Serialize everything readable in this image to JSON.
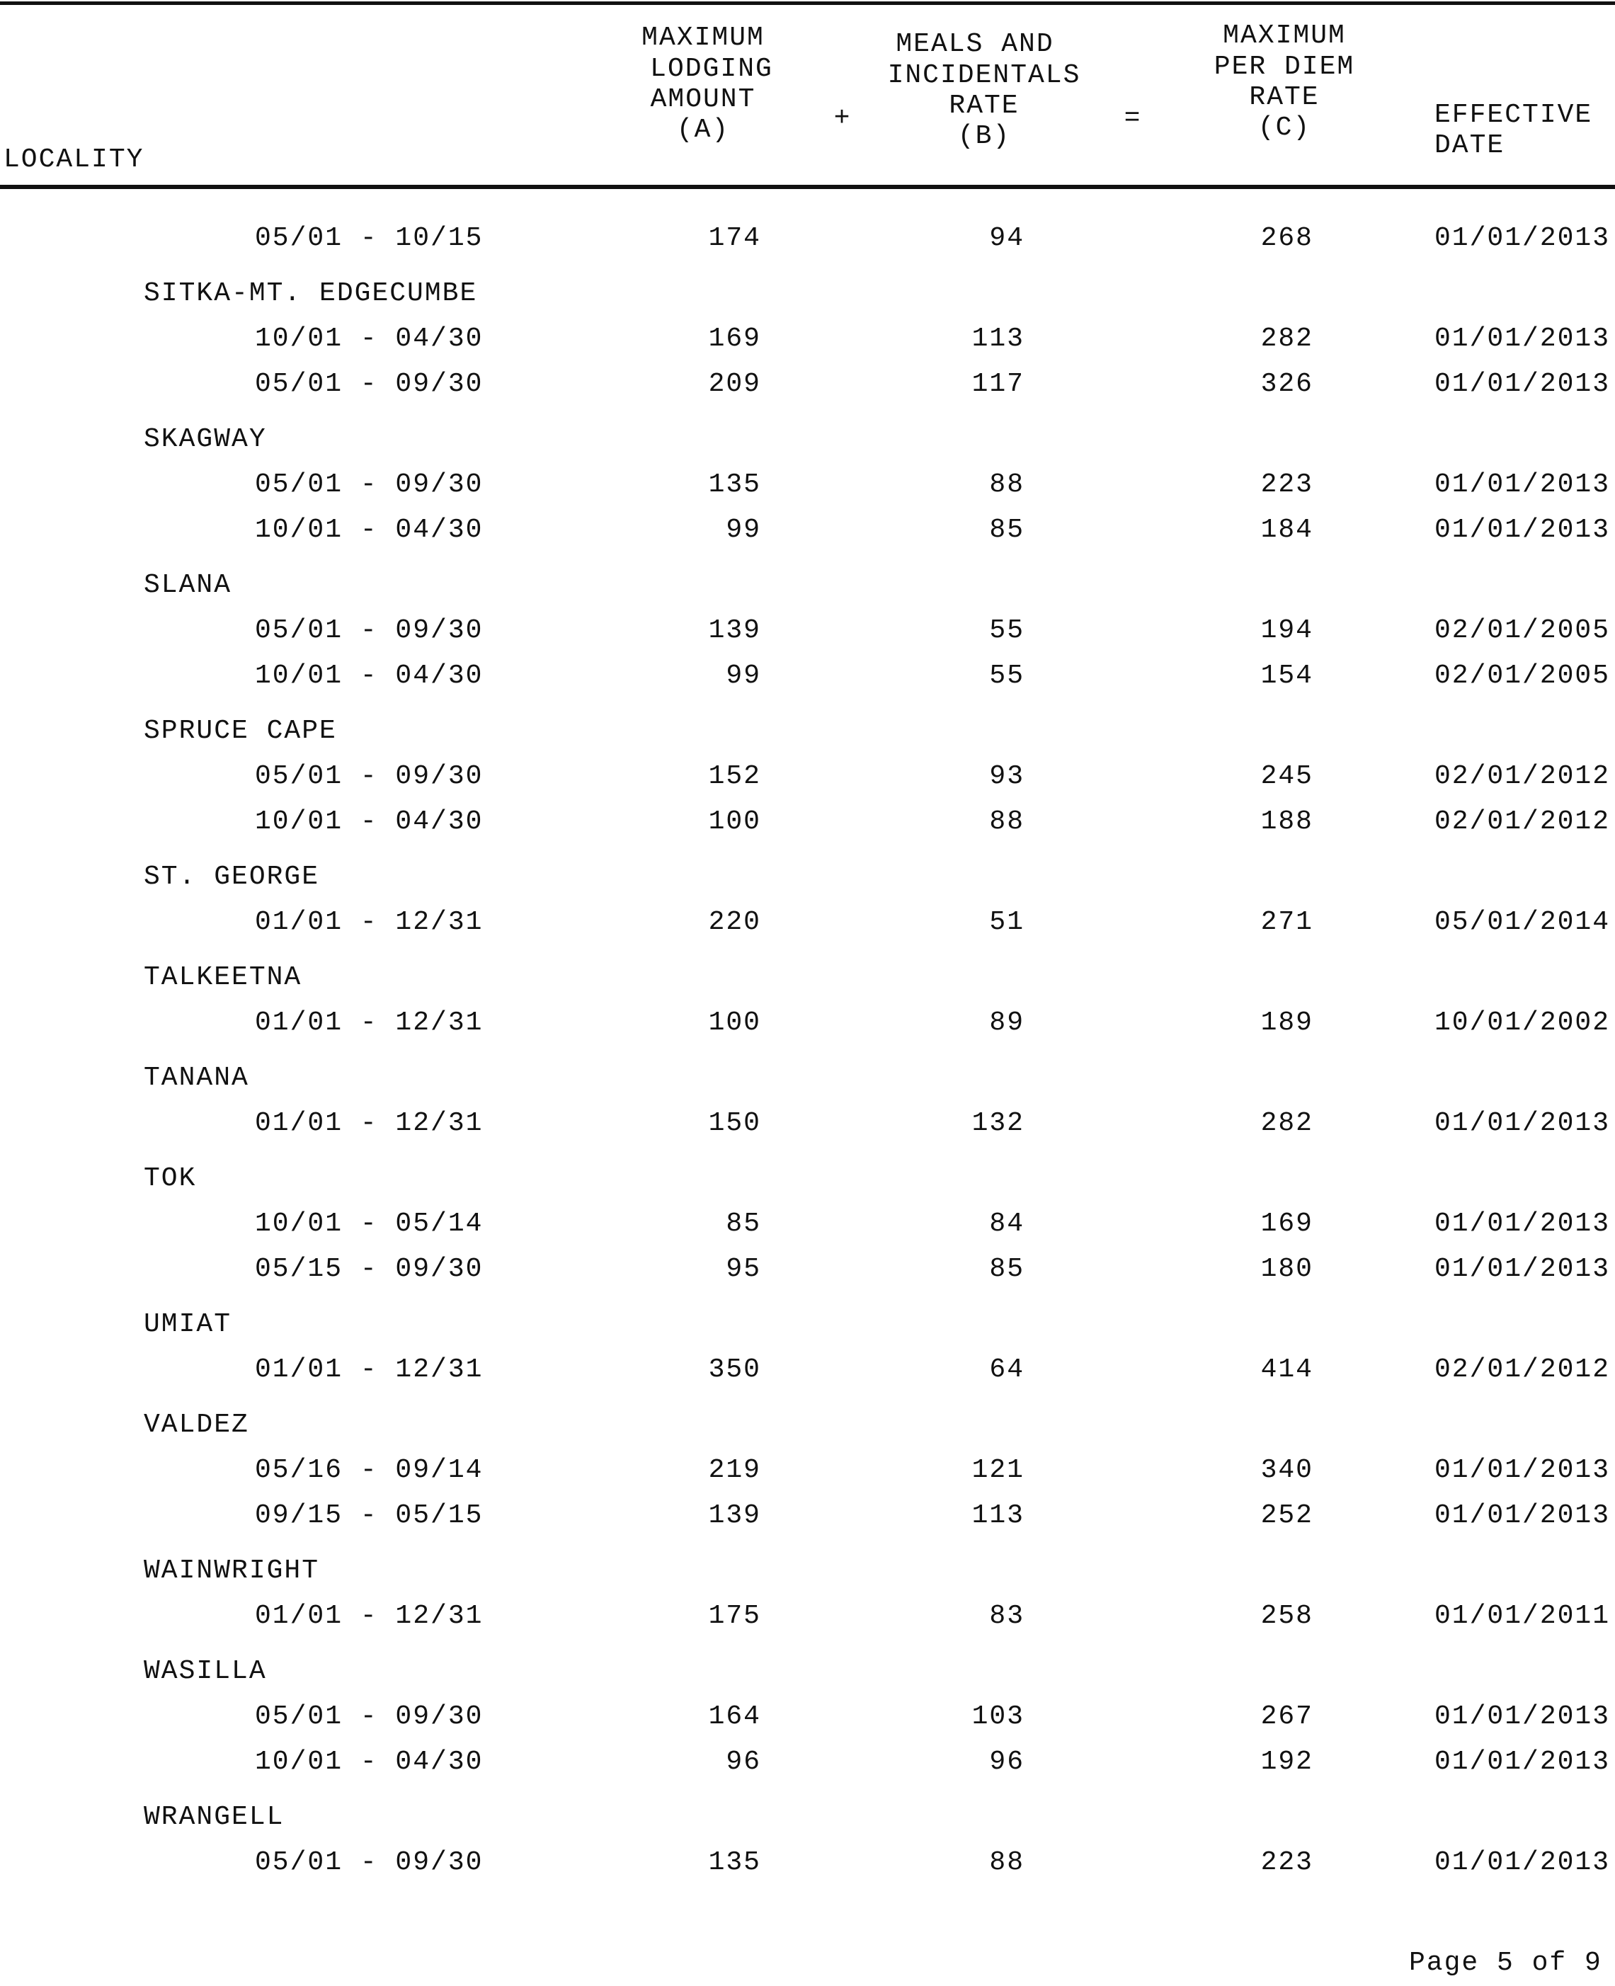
{
  "header": {
    "locality": "LOCALITY",
    "lodging": [
      "MAXIMUM",
      "LODGING",
      "AMOUNT",
      "(A)"
    ],
    "plus": "+",
    "mie": [
      "MEALS AND",
      "INCIDENTALS",
      "RATE",
      "(B)"
    ],
    "equals": "=",
    "per_diem": [
      "MAXIMUM",
      "PER DIEM",
      "RATE",
      "(C)"
    ],
    "effective": [
      "EFFECTIVE",
      "DATE"
    ]
  },
  "rows": [
    {
      "season": "05/01 - 10/15",
      "lodging": "174",
      "mie": "94",
      "per_diem": "268",
      "effective": "01/01/2013"
    },
    {
      "locality": "SITKA-MT. EDGECUMBE"
    },
    {
      "season": "10/01 - 04/30",
      "lodging": "169",
      "mie": "113",
      "per_diem": "282",
      "effective": "01/01/2013"
    },
    {
      "season": "05/01 - 09/30",
      "lodging": "209",
      "mie": "117",
      "per_diem": "326",
      "effective": "01/01/2013"
    },
    {
      "locality": "SKAGWAY"
    },
    {
      "season": "05/01 - 09/30",
      "lodging": "135",
      "mie": "88",
      "per_diem": "223",
      "effective": "01/01/2013"
    },
    {
      "season": "10/01 - 04/30",
      "lodging": "99",
      "mie": "85",
      "per_diem": "184",
      "effective": "01/01/2013"
    },
    {
      "locality": "SLANA"
    },
    {
      "season": "05/01 - 09/30",
      "lodging": "139",
      "mie": "55",
      "per_diem": "194",
      "effective": "02/01/2005"
    },
    {
      "season": "10/01 - 04/30",
      "lodging": "99",
      "mie": "55",
      "per_diem": "154",
      "effective": "02/01/2005"
    },
    {
      "locality": "SPRUCE CAPE"
    },
    {
      "season": "05/01 - 09/30",
      "lodging": "152",
      "mie": "93",
      "per_diem": "245",
      "effective": "02/01/2012"
    },
    {
      "season": "10/01 - 04/30",
      "lodging": "100",
      "mie": "88",
      "per_diem": "188",
      "effective": "02/01/2012"
    },
    {
      "locality": "ST. GEORGE"
    },
    {
      "season": "01/01 - 12/31",
      "lodging": "220",
      "mie": "51",
      "per_diem": "271",
      "effective": "05/01/2014"
    },
    {
      "locality": "TALKEETNA"
    },
    {
      "season": "01/01 - 12/31",
      "lodging": "100",
      "mie": "89",
      "per_diem": "189",
      "effective": "10/01/2002"
    },
    {
      "locality": "TANANA"
    },
    {
      "season": "01/01 - 12/31",
      "lodging": "150",
      "mie": "132",
      "per_diem": "282",
      "effective": "01/01/2013"
    },
    {
      "locality": "TOK"
    },
    {
      "season": "10/01 - 05/14",
      "lodging": "85",
      "mie": "84",
      "per_diem": "169",
      "effective": "01/01/2013"
    },
    {
      "season": "05/15 - 09/30",
      "lodging": "95",
      "mie": "85",
      "per_diem": "180",
      "effective": "01/01/2013"
    },
    {
      "locality": "UMIAT"
    },
    {
      "season": "01/01 - 12/31",
      "lodging": "350",
      "mie": "64",
      "per_diem": "414",
      "effective": "02/01/2012"
    },
    {
      "locality": "VALDEZ"
    },
    {
      "season": "05/16 - 09/14",
      "lodging": "219",
      "mie": "121",
      "per_diem": "340",
      "effective": "01/01/2013"
    },
    {
      "season": "09/15 - 05/15",
      "lodging": "139",
      "mie": "113",
      "per_diem": "252",
      "effective": "01/01/2013"
    },
    {
      "locality": "WAINWRIGHT"
    },
    {
      "season": "01/01 - 12/31",
      "lodging": "175",
      "mie": "83",
      "per_diem": "258",
      "effective": "01/01/2011"
    },
    {
      "locality": "WASILLA"
    },
    {
      "season": "05/01 - 09/30",
      "lodging": "164",
      "mie": "103",
      "per_diem": "267",
      "effective": "01/01/2013"
    },
    {
      "season": "10/01 - 04/30",
      "lodging": "96",
      "mie": "96",
      "per_diem": "192",
      "effective": "01/01/2013"
    },
    {
      "locality": "WRANGELL"
    },
    {
      "season": "05/01 - 09/30",
      "lodging": "135",
      "mie": "88",
      "per_diem": "223",
      "effective": "01/01/2013"
    }
  ],
  "footer": {
    "page": "Page 5 of 9"
  }
}
